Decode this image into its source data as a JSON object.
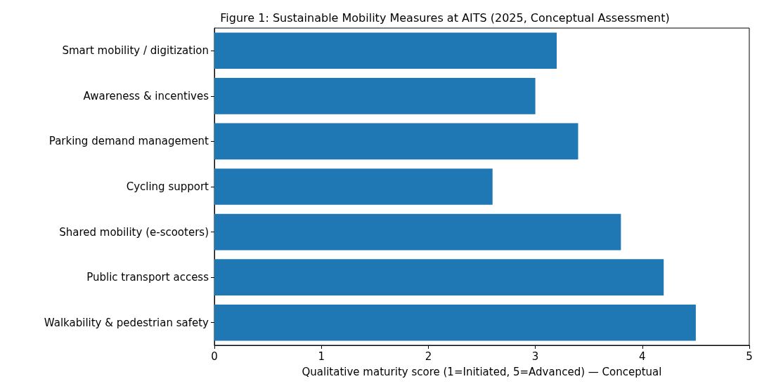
{
  "chart_data": {
    "type": "bar",
    "orientation": "horizontal",
    "title": "Figure 1: Sustainable Mobility Measures at AITS (2025, Conceptual Assessment)",
    "xlabel": "Qualitative maturity score (1=Initiated, 5=Advanced) — Conceptual",
    "categories": [
      "Smart mobility / digitization",
      "Awareness & incentives",
      "Parking demand management",
      "Cycling support",
      "Shared mobility (e-scooters)",
      "Public transport access",
      "Walkability & pedestrian safety"
    ],
    "values": [
      3.2,
      3.0,
      3.4,
      2.6,
      3.8,
      4.2,
      4.5
    ],
    "color": "#1f77b4",
    "xlim": [
      0,
      5
    ],
    "xticks": [
      0,
      1,
      2,
      3,
      4,
      5
    ],
    "grid": false
  }
}
